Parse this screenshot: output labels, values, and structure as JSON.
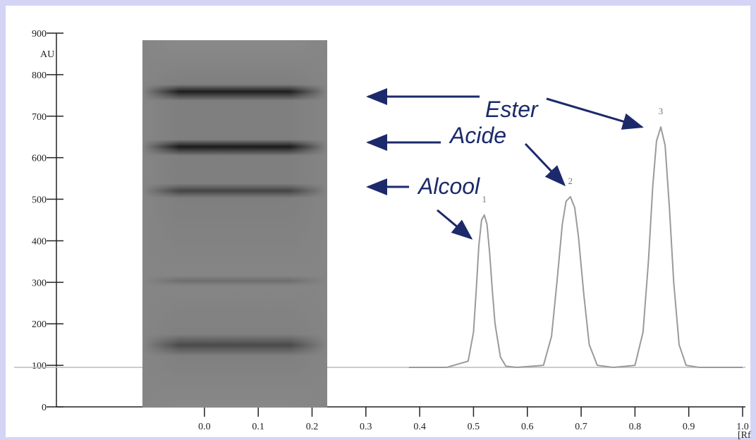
{
  "chart_data": {
    "type": "line",
    "ylabel": "AU",
    "xlabel": "[Rf",
    "xlim": [
      -0.275,
      1.0
    ],
    "ylim": [
      0,
      900
    ],
    "xticks": [
      {
        "value": 0,
        "label": "0.0"
      },
      0.1,
      0.2,
      0.3,
      0.4,
      0.5,
      0.6,
      0.7,
      0.8,
      0.9,
      {
        "value": 1,
        "label": "1.0"
      }
    ],
    "yticks": [
      0,
      100,
      200,
      300,
      400,
      500,
      600,
      700,
      800,
      900
    ],
    "baseline": 95,
    "series": [
      {
        "color": "#9a9a9a",
        "x": [
          0.38,
          0.45,
          0.49,
          0.5,
          0.505,
          0.51,
          0.515,
          0.52,
          0.525,
          0.53,
          0.535,
          0.54,
          0.55,
          0.56,
          0.58,
          0.63,
          0.645,
          0.655,
          0.665,
          0.672,
          0.68,
          0.688,
          0.695,
          0.705,
          0.715,
          0.73,
          0.76,
          0.8,
          0.815,
          0.825,
          0.833,
          0.84,
          0.848,
          0.856,
          0.864,
          0.872,
          0.882,
          0.895,
          0.92,
          1.0
        ],
        "values": [
          95,
          95,
          110,
          180,
          280,
          390,
          450,
          462,
          440,
          370,
          280,
          200,
          120,
          98,
          95,
          100,
          170,
          300,
          440,
          495,
          506,
          480,
          410,
          270,
          150,
          100,
          95,
          100,
          180,
          350,
          530,
          640,
          674,
          630,
          480,
          300,
          150,
          100,
          95,
          95
        ]
      }
    ],
    "annotations": [
      {
        "text": "Ester"
      },
      {
        "text": "Acide"
      },
      {
        "text": "Alcool"
      }
    ],
    "peak_labels": [
      "1",
      "2",
      "3"
    ]
  }
}
